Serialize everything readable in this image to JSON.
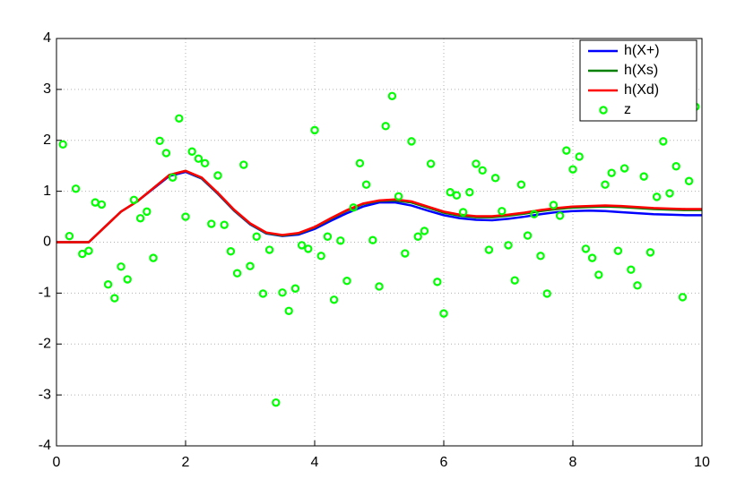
{
  "chart_data": {
    "type": "line",
    "xlim": [
      0,
      10
    ],
    "ylim": [
      -4,
      4
    ],
    "xticks": [
      0,
      2,
      4,
      6,
      8,
      10
    ],
    "yticks": [
      -4,
      -3,
      -2,
      -1,
      0,
      1,
      2,
      3,
      4
    ],
    "grid": true,
    "legend_location": "northeast",
    "series": [
      {
        "name": "h(X+)",
        "type": "line",
        "color": "#0000ff",
        "x": [
          0,
          0.25,
          0.5,
          0.75,
          1,
          1.25,
          1.5,
          1.75,
          2,
          2.25,
          2.5,
          2.75,
          3,
          3.25,
          3.5,
          3.75,
          4,
          4.25,
          4.5,
          4.75,
          5,
          5.25,
          5.5,
          5.75,
          6,
          6.25,
          6.5,
          6.75,
          7,
          7.25,
          7.5,
          7.75,
          8,
          8.25,
          8.5,
          8.75,
          9,
          9.25,
          9.5,
          9.75,
          10
        ],
        "values": [
          0,
          0,
          0,
          0.3,
          0.6,
          0.8,
          1.05,
          1.3,
          1.38,
          1.25,
          0.95,
          0.62,
          0.35,
          0.17,
          0.12,
          0.15,
          0.26,
          0.42,
          0.57,
          0.7,
          0.78,
          0.78,
          0.72,
          0.62,
          0.53,
          0.47,
          0.44,
          0.43,
          0.46,
          0.5,
          0.55,
          0.59,
          0.61,
          0.62,
          0.61,
          0.59,
          0.57,
          0.55,
          0.54,
          0.53,
          0.53
        ]
      },
      {
        "name": "h(Xs)",
        "type": "line",
        "color": "#008000",
        "x": [
          0,
          0.25,
          0.5,
          0.75,
          1,
          1.25,
          1.5,
          1.75,
          2,
          2.25,
          2.5,
          2.75,
          3,
          3.25,
          3.5,
          3.75,
          4,
          4.25,
          4.5,
          4.75,
          5,
          5.25,
          5.5,
          5.75,
          6,
          6.25,
          6.5,
          6.75,
          7,
          7.25,
          7.5,
          7.75,
          8,
          8.25,
          8.5,
          8.75,
          9,
          9.25,
          9.5,
          9.75,
          10
        ],
        "values": [
          0,
          0,
          0,
          0.3,
          0.6,
          0.8,
          1.06,
          1.32,
          1.4,
          1.26,
          0.96,
          0.63,
          0.36,
          0.18,
          0.13,
          0.17,
          0.29,
          0.46,
          0.62,
          0.75,
          0.81,
          0.82,
          0.78,
          0.68,
          0.58,
          0.52,
          0.49,
          0.49,
          0.52,
          0.56,
          0.61,
          0.65,
          0.68,
          0.69,
          0.7,
          0.69,
          0.67,
          0.65,
          0.64,
          0.63,
          0.63
        ]
      },
      {
        "name": "h(Xd)",
        "type": "line",
        "color": "#ff0000",
        "x": [
          0,
          0.25,
          0.5,
          0.75,
          1,
          1.25,
          1.5,
          1.75,
          2,
          2.25,
          2.5,
          2.75,
          3,
          3.25,
          3.5,
          3.75,
          4,
          4.25,
          4.5,
          4.75,
          5,
          5.25,
          5.5,
          5.75,
          6,
          6.25,
          6.5,
          6.75,
          7,
          7.25,
          7.5,
          7.75,
          8,
          8.25,
          8.5,
          8.75,
          9,
          9.25,
          9.5,
          9.75,
          10
        ],
        "values": [
          0,
          0,
          0,
          0.3,
          0.6,
          0.8,
          1.06,
          1.32,
          1.4,
          1.27,
          0.97,
          0.64,
          0.37,
          0.19,
          0.14,
          0.18,
          0.3,
          0.47,
          0.63,
          0.76,
          0.82,
          0.84,
          0.8,
          0.7,
          0.6,
          0.54,
          0.51,
          0.51,
          0.54,
          0.58,
          0.63,
          0.67,
          0.7,
          0.71,
          0.72,
          0.71,
          0.69,
          0.67,
          0.66,
          0.65,
          0.65
        ]
      },
      {
        "name": "z",
        "type": "scatter",
        "color": "#00ff00",
        "x": [
          0.1,
          0.2,
          0.3,
          0.4,
          0.5,
          0.6,
          0.7,
          0.8,
          0.9,
          1,
          1.1,
          1.2,
          1.3,
          1.4,
          1.5,
          1.6,
          1.7,
          1.8,
          1.9,
          2,
          2.1,
          2.2,
          2.3,
          2.4,
          2.5,
          2.6,
          2.7,
          2.8,
          2.9,
          3,
          3.1,
          3.2,
          3.3,
          3.4,
          3.5,
          3.6,
          3.7,
          3.8,
          3.9,
          4,
          4.1,
          4.2,
          4.3,
          4.4,
          4.5,
          4.6,
          4.7,
          4.8,
          4.9,
          5,
          5.1,
          5.2,
          5.3,
          5.4,
          5.5,
          5.6,
          5.7,
          5.8,
          5.9,
          6,
          6.1,
          6.2,
          6.3,
          6.4,
          6.5,
          6.6,
          6.7,
          6.8,
          6.9,
          7,
          7.1,
          7.2,
          7.3,
          7.4,
          7.5,
          7.6,
          7.7,
          7.8,
          7.9,
          8,
          8.1,
          8.2,
          8.3,
          8.4,
          8.5,
          8.6,
          8.7,
          8.8,
          8.9,
          9,
          9.1,
          9.2,
          9.3,
          9.4,
          9.5,
          9.6,
          9.7,
          9.8,
          9.9
        ],
        "values": [
          1.92,
          0.12,
          1.05,
          -0.23,
          -0.17,
          0.78,
          0.74,
          -0.83,
          -1.1,
          -0.48,
          -0.73,
          0.83,
          0.47,
          0.6,
          -0.31,
          1.99,
          1.75,
          1.27,
          2.43,
          0.5,
          1.78,
          1.64,
          1.55,
          0.36,
          1.31,
          0.34,
          -0.18,
          -0.61,
          1.52,
          -0.47,
          0.11,
          -1.01,
          -0.15,
          -3.15,
          -0.99,
          -1.35,
          -0.91,
          -0.06,
          -0.13,
          2.2,
          -0.27,
          0.11,
          -1.13,
          0.03,
          -0.76,
          0.68,
          1.55,
          1.13,
          0.04,
          -0.87,
          2.28,
          2.87,
          0.9,
          -0.22,
          1.98,
          0.11,
          0.22,
          1.54,
          -0.78,
          -1.4,
          0.98,
          0.92,
          0.59,
          0.98,
          1.54,
          1.41,
          -0.15,
          1.26,
          0.61,
          -0.06,
          -0.75,
          1.13,
          0.13,
          0.55,
          -0.27,
          -1.01,
          0.73,
          0.52,
          1.8,
          1.43,
          1.68,
          -0.13,
          -0.31,
          -0.64,
          1.13,
          1.36,
          -0.17,
          1.45,
          -0.54,
          -0.85,
          1.29,
          -0.2,
          0.89,
          1.98,
          0.96,
          1.49,
          -1.08,
          1.2,
          2.66
        ]
      }
    ]
  }
}
